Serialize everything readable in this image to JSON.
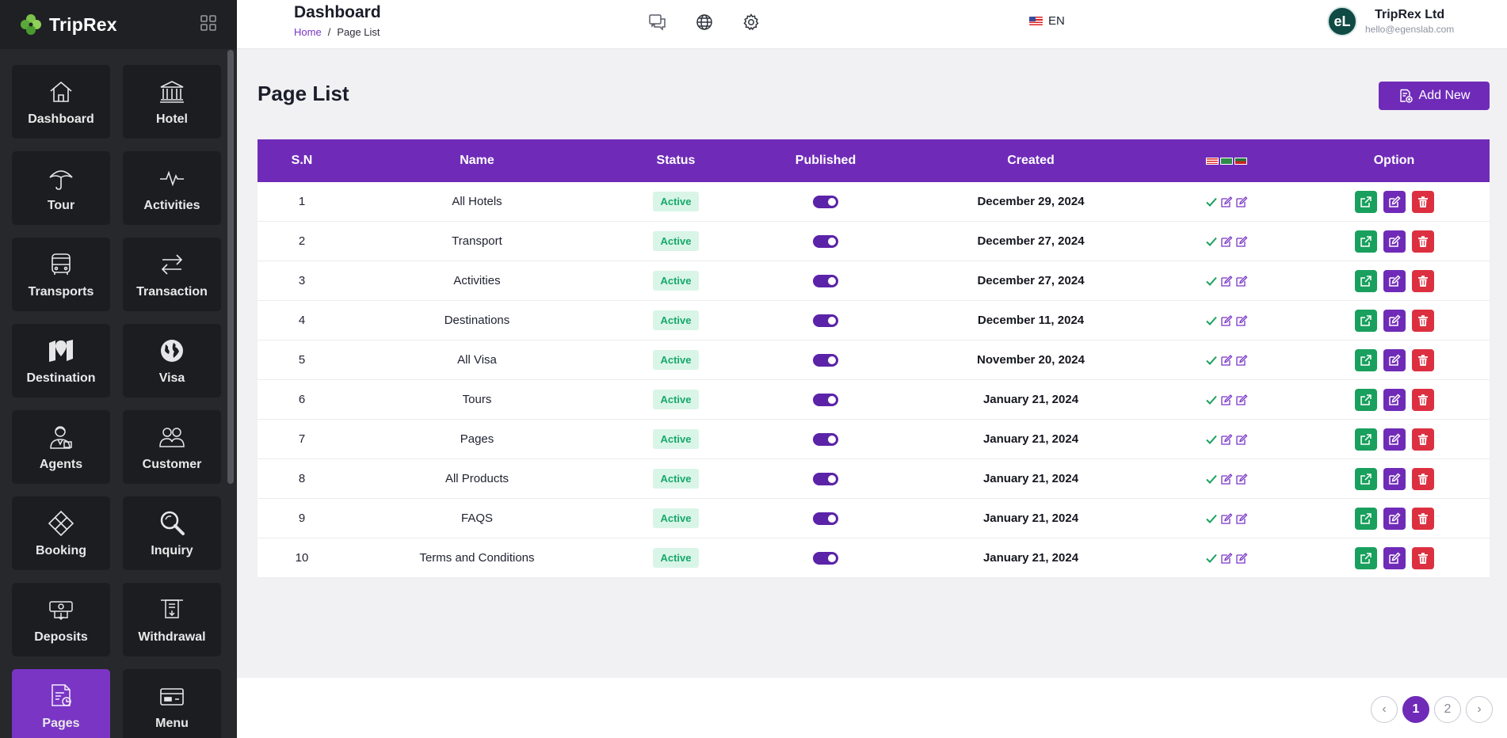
{
  "brand": {
    "name": "TripRex"
  },
  "sidebar": {
    "items": [
      {
        "label": "Dashboard",
        "icon": "home-icon"
      },
      {
        "label": "Hotel",
        "icon": "building-icon"
      },
      {
        "label": "Tour",
        "icon": "umbrella-icon"
      },
      {
        "label": "Activities",
        "icon": "pulse-icon"
      },
      {
        "label": "Transports",
        "icon": "bus-icon"
      },
      {
        "label": "Transaction",
        "icon": "swap-icon"
      },
      {
        "label": "Destination",
        "icon": "map-pin-icon"
      },
      {
        "label": "Visa",
        "icon": "globe-icon"
      },
      {
        "label": "Agents",
        "icon": "agent-icon"
      },
      {
        "label": "Customer",
        "icon": "users-icon"
      },
      {
        "label": "Booking",
        "icon": "diamond-icon"
      },
      {
        "label": "Inquiry",
        "icon": "magnifier-icon"
      },
      {
        "label": "Deposits",
        "icon": "deposit-icon"
      },
      {
        "label": "Withdrawal",
        "icon": "withdraw-icon"
      },
      {
        "label": "Pages",
        "icon": "pages-icon",
        "active": true
      },
      {
        "label": "Menu",
        "icon": "menu-card-icon"
      }
    ]
  },
  "header": {
    "title": "Dashboard",
    "breadcrumb": {
      "home": "Home",
      "separator": "/",
      "current": "Page List"
    },
    "language": "EN",
    "user": {
      "name": "TripRex Ltd",
      "email": "hello@egenslab.com",
      "initials": "eL"
    }
  },
  "main": {
    "heading": "Page List",
    "add_label": "Add New",
    "columns": [
      "S.N",
      "Name",
      "Status",
      "Published",
      "Created",
      "",
      "Option"
    ],
    "rows": [
      {
        "sn": "1",
        "name": "All Hotels",
        "status": "Active",
        "created": "December 29, 2024"
      },
      {
        "sn": "2",
        "name": "Transport",
        "status": "Active",
        "created": "December 27, 2024"
      },
      {
        "sn": "3",
        "name": "Activities",
        "status": "Active",
        "created": "December 27, 2024"
      },
      {
        "sn": "4",
        "name": "Destinations",
        "status": "Active",
        "created": "December 11, 2024"
      },
      {
        "sn": "5",
        "name": "All Visa",
        "status": "Active",
        "created": "November 20, 2024"
      },
      {
        "sn": "6",
        "name": "Tours",
        "status": "Active",
        "created": "January 21, 2024"
      },
      {
        "sn": "7",
        "name": "Pages",
        "status": "Active",
        "created": "January 21, 2024"
      },
      {
        "sn": "8",
        "name": "All Products",
        "status": "Active",
        "created": "January 21, 2024"
      },
      {
        "sn": "9",
        "name": "FAQS",
        "status": "Active",
        "created": "January 21, 2024"
      },
      {
        "sn": "10",
        "name": "Terms and Conditions",
        "status": "Active",
        "created": "January 21, 2024"
      }
    ]
  },
  "pagination": {
    "prev": "‹",
    "pages": [
      "1",
      "2"
    ],
    "current": "1",
    "next": "›"
  },
  "colors": {
    "accent": "#6f2bb8",
    "success": "#19a05e",
    "danger": "#dc3040",
    "sidebar": "#26282c"
  }
}
